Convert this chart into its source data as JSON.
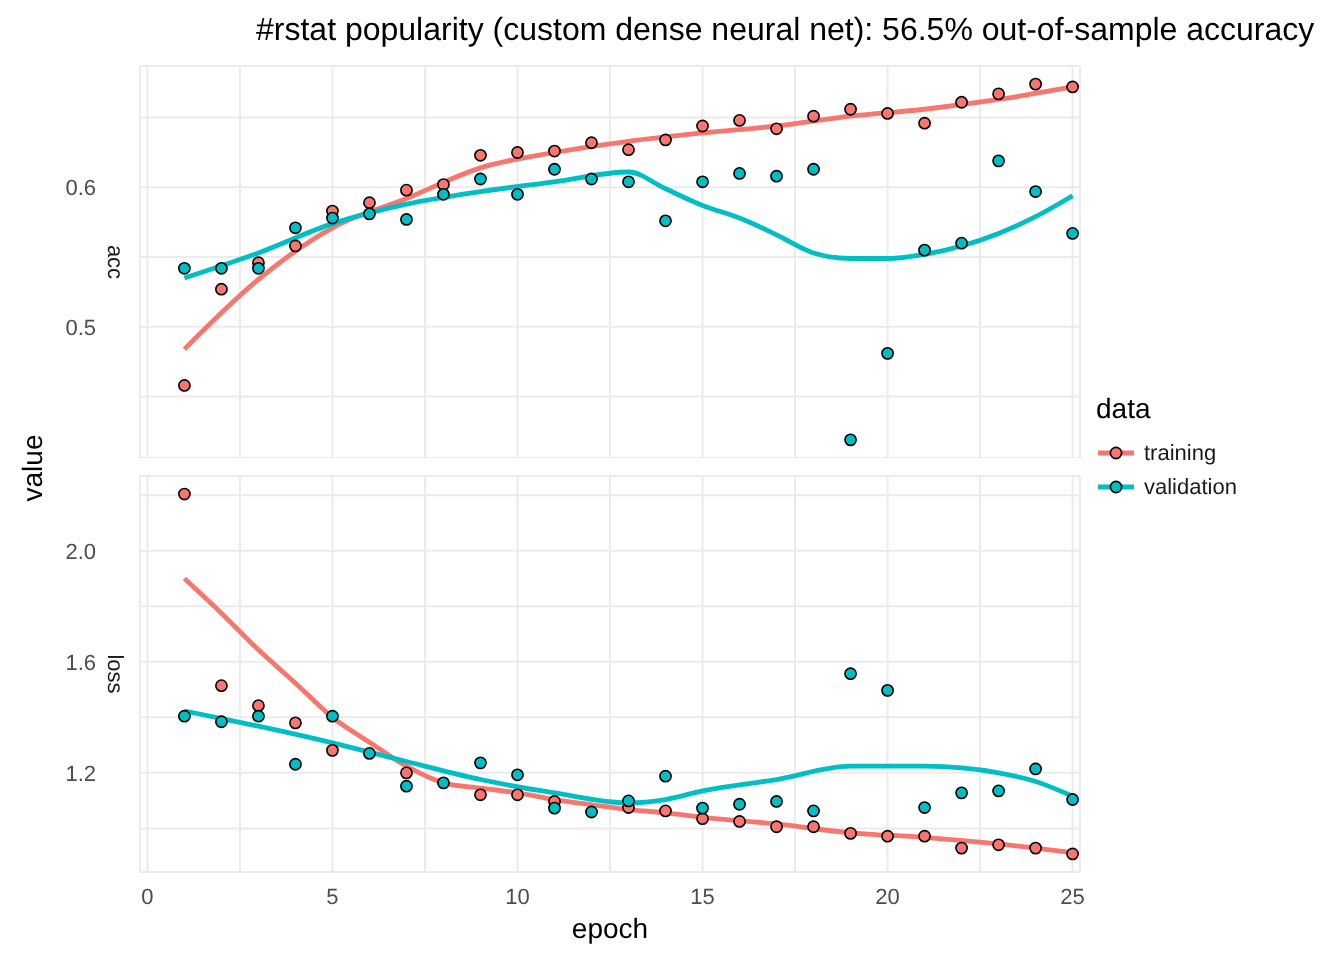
{
  "chart_data": [
    {
      "type": "scatter",
      "title": "#rstat popularity (custom dense neural net): 56.5% out-of-sample accuracy",
      "subtitle": "acc",
      "ylabel": "value",
      "legend_title": "data",
      "legend": "right",
      "marker": "circle",
      "grid": true,
      "tick_labels": "y",
      "xlim": [
        -0.2,
        25.2
      ],
      "xticks": [
        0,
        {
          "value": 2.5,
          "label": null
        },
        5,
        {
          "value": 7.5,
          "label": null
        },
        10,
        {
          "value": 12.5,
          "label": null
        },
        15,
        {
          "value": 17.5,
          "label": null
        },
        20,
        {
          "value": 22.5,
          "label": null
        },
        25
      ],
      "ylim": [
        0.406,
        0.687
      ],
      "yticks": [
        {
          "value": 0.45,
          "label": null
        },
        {
          "value": 0.5,
          "label": "0.5"
        },
        {
          "value": 0.55,
          "label": null
        },
        {
          "value": 0.6,
          "label": "0.6"
        },
        {
          "value": 0.65,
          "label": null
        }
      ],
      "x": [
        1,
        2,
        3,
        4,
        5,
        6,
        7,
        8,
        9,
        10,
        11,
        12,
        13,
        14,
        15,
        16,
        17,
        18,
        19,
        20,
        21,
        22,
        23,
        24,
        25
      ],
      "series": [
        {
          "name": "training",
          "color": "#f8766d",
          "values": [
            0.458,
            0.527,
            0.546,
            0.558,
            0.583,
            0.589,
            0.598,
            0.602,
            0.623,
            0.625,
            0.626,
            0.632,
            0.627,
            0.634,
            0.644,
            0.648,
            0.642,
            0.651,
            0.656,
            0.653,
            0.646,
            0.661,
            0.667,
            0.674,
            0.672
          ]
        },
        {
          "name": "validation",
          "color": "#00bfc4",
          "values": [
            0.542,
            0.542,
            0.542,
            0.571,
            0.578,
            0.581,
            0.577,
            0.595,
            0.606,
            0.595,
            0.613,
            0.606,
            0.604,
            0.576,
            0.604,
            0.61,
            0.608,
            0.613,
            0.419,
            0.481,
            0.555,
            0.56,
            0.619,
            0.597,
            0.567
          ]
        },
        {
          "type": "line",
          "marker": "none",
          "color": "#f8766d",
          "x": [
            1,
            3,
            5,
            7,
            9,
            11,
            13,
            15,
            17,
            19,
            21,
            23,
            25
          ],
          "values": [
            0.484,
            0.534,
            0.571,
            0.592,
            0.614,
            0.625,
            0.633,
            0.639,
            0.644,
            0.651,
            0.656,
            0.663,
            0.672
          ]
        },
        {
          "type": "line",
          "marker": "none",
          "color": "#00bfc4",
          "x": [
            1,
            3,
            5,
            7,
            9,
            11,
            13,
            14,
            15,
            16,
            17,
            18,
            19,
            20,
            21,
            22,
            23,
            24,
            25
          ],
          "values": [
            0.535,
            0.553,
            0.574,
            0.588,
            0.597,
            0.604,
            0.611,
            0.599,
            0.587,
            0.578,
            0.566,
            0.553,
            0.549,
            0.549,
            0.552,
            0.558,
            0.567,
            0.579,
            0.594
          ]
        }
      ]
    },
    {
      "type": "scatter",
      "subtitle": "loss",
      "xlabel": "epoch",
      "marker": "circle",
      "grid": true,
      "xlim": [
        -0.2,
        25.2
      ],
      "xticks": [
        0,
        {
          "value": 2.5,
          "label": null
        },
        5,
        {
          "value": 7.5,
          "label": null
        },
        10,
        {
          "value": 12.5,
          "label": null
        },
        15,
        {
          "value": 17.5,
          "label": null
        },
        20,
        {
          "value": 22.5,
          "label": null
        },
        25
      ],
      "ylim": [
        0.843,
        2.269
      ],
      "yticks": [
        {
          "value": 1.0,
          "label": null
        },
        {
          "value": 1.2,
          "label": "1.2"
        },
        {
          "value": 1.4,
          "label": null
        },
        {
          "value": 1.6,
          "label": "1.6"
        },
        {
          "value": 1.8,
          "label": null
        },
        {
          "value": 2.0,
          "label": "2.0"
        },
        {
          "value": 2.2,
          "label": null
        }
      ],
      "x": [
        1,
        2,
        3,
        4,
        5,
        6,
        7,
        8,
        9,
        10,
        11,
        12,
        13,
        14,
        15,
        16,
        17,
        18,
        19,
        20,
        21,
        22,
        23,
        24,
        25
      ],
      "series": [
        {
          "color": "#f8766d",
          "values": [
            2.204,
            1.514,
            1.442,
            1.38,
            1.281,
            null,
            1.2,
            null,
            1.121,
            1.121,
            1.097,
            null,
            1.075,
            1.063,
            1.035,
            1.025,
            1.006,
            1.006,
            0.982,
            0.972,
            0.972,
            0.929,
            0.941,
            0.929,
            0.908
          ]
        },
        {
          "color": "#00bfc4",
          "values": [
            1.404,
            1.384,
            1.404,
            1.231,
            1.404,
            1.27,
            1.152,
            1.164,
            1.236,
            1.193,
            1.073,
            1.059,
            1.099,
            1.188,
            1.073,
            1.087,
            1.097,
            1.063,
            1.557,
            1.497,
            1.075,
            1.128,
            1.135,
            1.214,
            1.104
          ]
        },
        {
          "type": "line",
          "marker": "none",
          "color": "#f8766d",
          "x": [
            1,
            2,
            3,
            4,
            5,
            6,
            7,
            8,
            9,
            10,
            11,
            12,
            13,
            14,
            15,
            17,
            19,
            21,
            23,
            25
          ],
          "values": [
            1.9,
            1.775,
            1.643,
            1.523,
            1.4,
            1.31,
            1.224,
            1.164,
            1.145,
            1.128,
            1.104,
            1.085,
            1.068,
            1.056,
            1.04,
            1.016,
            0.984,
            0.968,
            0.944,
            0.913
          ]
        },
        {
          "type": "line",
          "marker": "none",
          "color": "#00bfc4",
          "x": [
            1,
            3,
            5,
            7,
            9,
            11,
            13,
            14,
            15,
            17,
            19,
            21,
            23,
            24,
            25
          ],
          "values": [
            1.423,
            1.368,
            1.308,
            1.241,
            1.176,
            1.128,
            1.092,
            1.104,
            1.135,
            1.176,
            1.224,
            1.224,
            1.2,
            1.169,
            1.116
          ]
        }
      ]
    }
  ]
}
